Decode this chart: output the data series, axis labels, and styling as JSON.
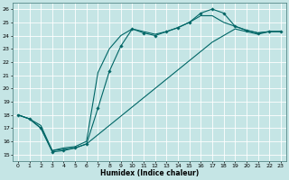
{
  "xlabel": "Humidex (Indice chaleur)",
  "bg_color": "#c5e5e5",
  "grid_color": "#afd4d4",
  "line_color": "#006666",
  "xlim": [
    -0.5,
    23.5
  ],
  "ylim": [
    14.5,
    26.5
  ],
  "xticks": [
    0,
    1,
    2,
    3,
    4,
    5,
    6,
    7,
    8,
    9,
    10,
    11,
    12,
    13,
    14,
    15,
    16,
    17,
    18,
    19,
    20,
    21,
    22,
    23
  ],
  "yticks": [
    15,
    16,
    17,
    18,
    19,
    20,
    21,
    22,
    23,
    24,
    25,
    26
  ],
  "curve_marked": {
    "x": [
      0,
      1,
      2,
      3,
      4,
      5,
      6,
      7,
      8,
      9,
      10,
      11,
      12,
      13,
      14,
      15,
      16,
      17,
      18,
      19,
      20,
      21,
      22,
      23
    ],
    "y": [
      18.0,
      17.7,
      17.0,
      15.2,
      15.3,
      15.5,
      15.8,
      18.5,
      21.3,
      23.2,
      24.5,
      24.2,
      24.0,
      24.3,
      24.6,
      25.0,
      25.7,
      26.0,
      25.7,
      24.7,
      24.4,
      24.2,
      24.3,
      24.3
    ]
  },
  "curve_diagonal": {
    "x": [
      0,
      1,
      2,
      3,
      4,
      5,
      6,
      7,
      8,
      9,
      10,
      11,
      12,
      13,
      14,
      15,
      16,
      17,
      18,
      19,
      20,
      21,
      22,
      23
    ],
    "y": [
      18.0,
      17.7,
      17.2,
      15.3,
      15.4,
      15.5,
      15.8,
      16.5,
      17.2,
      17.9,
      18.6,
      19.3,
      20.0,
      20.7,
      21.4,
      22.1,
      22.8,
      23.5,
      24.0,
      24.5,
      24.3,
      24.1,
      24.3,
      24.3
    ]
  },
  "curve_sweep": {
    "x": [
      0,
      1,
      2,
      3,
      4,
      5,
      6,
      7,
      8,
      9,
      10,
      11,
      12,
      13,
      14,
      15,
      16,
      17,
      18,
      19,
      20,
      21,
      22,
      23
    ],
    "y": [
      18.0,
      17.7,
      17.0,
      15.3,
      15.5,
      15.6,
      16.0,
      21.2,
      23.0,
      24.0,
      24.5,
      24.3,
      24.1,
      24.3,
      24.6,
      25.0,
      25.5,
      25.5,
      25.0,
      24.7,
      24.4,
      24.2,
      24.3,
      24.3
    ]
  }
}
